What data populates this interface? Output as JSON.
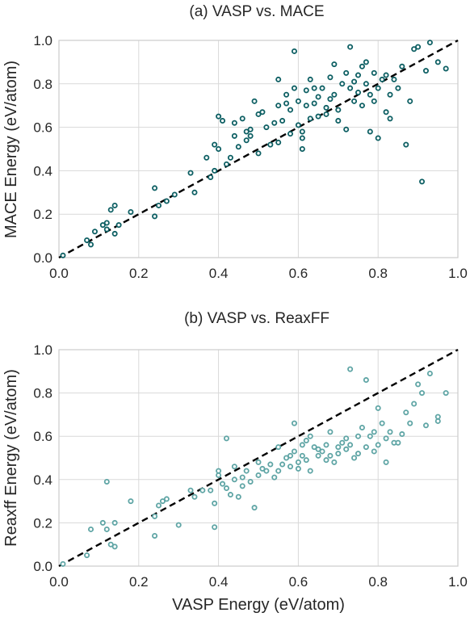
{
  "colors": {
    "mace": "#0d5f63",
    "reaxff": "#5fa5a5",
    "text": "#262626"
  },
  "chart_data": [
    {
      "type": "scatter",
      "title": "(a) VASP vs. MACE",
      "xlabel": "",
      "ylabel": "MACE Energy (eV/atom)",
      "xlim": [
        0,
        1
      ],
      "ylim": [
        0,
        1
      ],
      "xticks": [
        "0.0",
        "0.2",
        "0.4",
        "0.6",
        "0.8",
        "1.0"
      ],
      "yticks": [
        "0.0",
        "0.2",
        "0.4",
        "0.6",
        "0.8",
        "1.0"
      ],
      "grid": true,
      "reference_line": "y = x (dashed)",
      "points": [
        [
          0.01,
          0.01
        ],
        [
          0.07,
          0.08
        ],
        [
          0.08,
          0.06
        ],
        [
          0.09,
          0.12
        ],
        [
          0.11,
          0.15
        ],
        [
          0.12,
          0.16
        ],
        [
          0.12,
          0.13
        ],
        [
          0.13,
          0.22
        ],
        [
          0.14,
          0.24
        ],
        [
          0.14,
          0.11
        ],
        [
          0.15,
          0.15
        ],
        [
          0.18,
          0.21
        ],
        [
          0.24,
          0.19
        ],
        [
          0.24,
          0.32
        ],
        [
          0.25,
          0.24
        ],
        [
          0.27,
          0.26
        ],
        [
          0.29,
          0.29
        ],
        [
          0.33,
          0.39
        ],
        [
          0.34,
          0.3
        ],
        [
          0.37,
          0.46
        ],
        [
          0.38,
          0.37
        ],
        [
          0.39,
          0.52
        ],
        [
          0.39,
          0.4
        ],
        [
          0.4,
          0.5
        ],
        [
          0.4,
          0.65
        ],
        [
          0.41,
          0.63
        ],
        [
          0.42,
          0.43
        ],
        [
          0.43,
          0.46
        ],
        [
          0.44,
          0.62
        ],
        [
          0.44,
          0.56
        ],
        [
          0.45,
          0.51
        ],
        [
          0.46,
          0.64
        ],
        [
          0.47,
          0.58
        ],
        [
          0.47,
          0.54
        ],
        [
          0.48,
          0.59
        ],
        [
          0.48,
          0.56
        ],
        [
          0.49,
          0.72
        ],
        [
          0.5,
          0.66
        ],
        [
          0.5,
          0.48
        ],
        [
          0.51,
          0.67
        ],
        [
          0.52,
          0.6
        ],
        [
          0.53,
          0.52
        ],
        [
          0.54,
          0.62
        ],
        [
          0.55,
          0.82
        ],
        [
          0.55,
          0.7
        ],
        [
          0.55,
          0.53
        ],
        [
          0.56,
          0.63
        ],
        [
          0.57,
          0.75
        ],
        [
          0.57,
          0.71
        ],
        [
          0.58,
          0.57
        ],
        [
          0.58,
          0.68
        ],
        [
          0.59,
          0.95
        ],
        [
          0.59,
          0.78
        ],
        [
          0.6,
          0.61
        ],
        [
          0.6,
          0.72
        ],
        [
          0.61,
          0.58
        ],
        [
          0.61,
          0.55
        ],
        [
          0.61,
          0.5
        ],
        [
          0.62,
          0.7
        ],
        [
          0.62,
          0.77
        ],
        [
          0.63,
          0.82
        ],
        [
          0.63,
          0.64
        ],
        [
          0.64,
          0.71
        ],
        [
          0.64,
          0.78
        ],
        [
          0.65,
          0.74
        ],
        [
          0.65,
          0.65
        ],
        [
          0.66,
          0.78
        ],
        [
          0.67,
          0.69
        ],
        [
          0.67,
          0.66
        ],
        [
          0.68,
          0.73
        ],
        [
          0.68,
          0.83
        ],
        [
          0.69,
          0.89
        ],
        [
          0.69,
          0.75
        ],
        [
          0.7,
          0.68
        ],
        [
          0.7,
          0.63
        ],
        [
          0.71,
          0.8
        ],
        [
          0.72,
          0.85
        ],
        [
          0.72,
          0.59
        ],
        [
          0.73,
          0.78
        ],
        [
          0.73,
          0.97
        ],
        [
          0.74,
          0.81
        ],
        [
          0.74,
          0.72
        ],
        [
          0.75,
          0.76
        ],
        [
          0.75,
          0.84
        ],
        [
          0.76,
          0.88
        ],
        [
          0.76,
          0.7
        ],
        [
          0.77,
          0.9
        ],
        [
          0.77,
          0.8
        ],
        [
          0.78,
          0.58
        ],
        [
          0.78,
          0.75
        ],
        [
          0.79,
          0.72
        ],
        [
          0.79,
          0.85
        ],
        [
          0.8,
          0.55
        ],
        [
          0.8,
          0.78
        ],
        [
          0.81,
          0.82
        ],
        [
          0.82,
          0.84
        ],
        [
          0.82,
          0.67
        ],
        [
          0.83,
          0.75
        ],
        [
          0.83,
          0.64
        ],
        [
          0.84,
          0.82
        ],
        [
          0.85,
          0.78
        ],
        [
          0.86,
          0.88
        ],
        [
          0.87,
          0.52
        ],
        [
          0.88,
          0.72
        ],
        [
          0.89,
          0.96
        ],
        [
          0.9,
          0.97
        ],
        [
          0.91,
          0.35
        ],
        [
          0.92,
          0.86
        ],
        [
          0.93,
          0.99
        ],
        [
          0.95,
          0.9
        ],
        [
          0.97,
          0.87
        ]
      ]
    },
    {
      "type": "scatter",
      "title": "(b) VASP vs. ReaxFF",
      "xlabel": "VASP Energy (eV/atom)",
      "ylabel": "Reaxff Energy (eV/atom)",
      "xlim": [
        0,
        1
      ],
      "ylim": [
        0,
        1
      ],
      "xticks": [
        "0.0",
        "0.2",
        "0.4",
        "0.6",
        "0.8",
        "1.0"
      ],
      "yticks": [
        "0.0",
        "0.2",
        "0.4",
        "0.6",
        "0.8",
        "1.0"
      ],
      "grid": true,
      "reference_line": "y = x (dashed)",
      "points": [
        [
          0.01,
          0.01
        ],
        [
          0.07,
          0.05
        ],
        [
          0.08,
          0.17
        ],
        [
          0.11,
          0.2
        ],
        [
          0.12,
          0.39
        ],
        [
          0.12,
          0.17
        ],
        [
          0.13,
          0.1
        ],
        [
          0.14,
          0.09
        ],
        [
          0.14,
          0.2
        ],
        [
          0.18,
          0.3
        ],
        [
          0.24,
          0.23
        ],
        [
          0.24,
          0.14
        ],
        [
          0.25,
          0.28
        ],
        [
          0.26,
          0.3
        ],
        [
          0.27,
          0.31
        ],
        [
          0.3,
          0.19
        ],
        [
          0.33,
          0.35
        ],
        [
          0.34,
          0.32
        ],
        [
          0.36,
          0.35
        ],
        [
          0.38,
          0.35
        ],
        [
          0.39,
          0.29
        ],
        [
          0.39,
          0.18
        ],
        [
          0.4,
          0.42
        ],
        [
          0.4,
          0.44
        ],
        [
          0.41,
          0.38
        ],
        [
          0.42,
          0.59
        ],
        [
          0.42,
          0.36
        ],
        [
          0.43,
          0.33
        ],
        [
          0.44,
          0.46
        ],
        [
          0.44,
          0.4
        ],
        [
          0.45,
          0.32
        ],
        [
          0.46,
          0.41
        ],
        [
          0.46,
          0.37
        ],
        [
          0.47,
          0.44
        ],
        [
          0.48,
          0.39
        ],
        [
          0.49,
          0.27
        ],
        [
          0.5,
          0.42
        ],
        [
          0.5,
          0.48
        ],
        [
          0.51,
          0.45
        ],
        [
          0.52,
          0.44
        ],
        [
          0.53,
          0.47
        ],
        [
          0.54,
          0.41
        ],
        [
          0.55,
          0.55
        ],
        [
          0.55,
          0.44
        ],
        [
          0.56,
          0.47
        ],
        [
          0.57,
          0.5
        ],
        [
          0.58,
          0.46
        ],
        [
          0.58,
          0.51
        ],
        [
          0.59,
          0.66
        ],
        [
          0.59,
          0.53
        ],
        [
          0.6,
          0.45
        ],
        [
          0.6,
          0.48
        ],
        [
          0.61,
          0.56
        ],
        [
          0.61,
          0.51
        ],
        [
          0.62,
          0.49
        ],
        [
          0.62,
          0.58
        ],
        [
          0.63,
          0.6
        ],
        [
          0.63,
          0.44
        ],
        [
          0.64,
          0.55
        ],
        [
          0.65,
          0.54
        ],
        [
          0.65,
          0.51
        ],
        [
          0.66,
          0.53
        ],
        [
          0.67,
          0.49
        ],
        [
          0.67,
          0.56
        ],
        [
          0.68,
          0.62
        ],
        [
          0.68,
          0.51
        ],
        [
          0.69,
          0.48
        ],
        [
          0.7,
          0.55
        ],
        [
          0.7,
          0.52
        ],
        [
          0.71,
          0.57
        ],
        [
          0.72,
          0.59
        ],
        [
          0.72,
          0.54
        ],
        [
          0.73,
          0.91
        ],
        [
          0.73,
          0.56
        ],
        [
          0.74,
          0.5
        ],
        [
          0.75,
          0.6
        ],
        [
          0.75,
          0.52
        ],
        [
          0.76,
          0.64
        ],
        [
          0.77,
          0.55
        ],
        [
          0.77,
          0.86
        ],
        [
          0.78,
          0.6
        ],
        [
          0.79,
          0.62
        ],
        [
          0.79,
          0.53
        ],
        [
          0.8,
          0.73
        ],
        [
          0.8,
          0.56
        ],
        [
          0.81,
          0.66
        ],
        [
          0.82,
          0.48
        ],
        [
          0.82,
          0.59
        ],
        [
          0.83,
          0.62
        ],
        [
          0.84,
          0.57
        ],
        [
          0.85,
          0.57
        ],
        [
          0.86,
          0.61
        ],
        [
          0.87,
          0.71
        ],
        [
          0.88,
          0.66
        ],
        [
          0.89,
          0.75
        ],
        [
          0.9,
          0.84
        ],
        [
          0.91,
          0.8
        ],
        [
          0.92,
          0.65
        ],
        [
          0.93,
          0.89
        ],
        [
          0.95,
          0.69
        ],
        [
          0.95,
          0.67
        ],
        [
          0.97,
          0.8
        ]
      ]
    }
  ]
}
